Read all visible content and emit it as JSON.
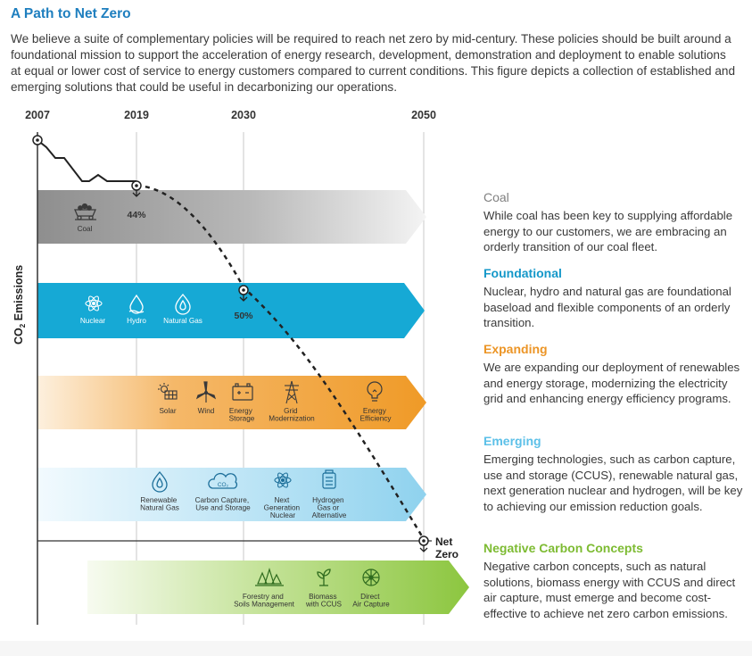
{
  "title": "A Path to Net Zero",
  "intro": "We believe a suite of complementary policies will be required to reach net zero by mid-century. These policies should be built around a foundational mission to support the acceleration of energy research, development, demonstration and deployment to enable solutions at equal or lower cost of service to energy customers compared to current conditions. This figure depicts a collection of established and emerging solutions that could be useful in decarbonizing our operations.",
  "diagram": {
    "years": [
      "2007",
      "2019",
      "2030",
      "2050"
    ],
    "y_axis_label": "CO",
    "y_axis_sub": "2",
    "y_axis_suffix": " Emissions",
    "markers": {
      "m2019": "44%",
      "m2030": "50%"
    },
    "net_zero": [
      "Net",
      "Zero"
    ],
    "colors": {
      "coal": "#9b9b9b",
      "foundational": "#16a9d5",
      "expanding": "#ef9d2c",
      "emerging": "#8fd2ee",
      "negative": "#8cc63f"
    },
    "bands": {
      "coal": {
        "items": [
          {
            "icon": "coal-cart-icon",
            "label": [
              "Coal"
            ]
          }
        ]
      },
      "foundational": {
        "items": [
          {
            "icon": "nuclear-icon",
            "label": [
              "Nuclear"
            ]
          },
          {
            "icon": "hydro-icon",
            "label": [
              "Hydro"
            ]
          },
          {
            "icon": "natural-gas-icon",
            "label": [
              "Natural Gas"
            ]
          }
        ]
      },
      "expanding": {
        "items": [
          {
            "icon": "solar-icon",
            "label": [
              "Solar"
            ]
          },
          {
            "icon": "wind-icon",
            "label": [
              "Wind"
            ]
          },
          {
            "icon": "energy-storage-icon",
            "label": [
              "Energy",
              "Storage"
            ]
          },
          {
            "icon": "grid-tower-icon",
            "label": [
              "Grid",
              "Modernization"
            ]
          },
          {
            "icon": "lightbulb-icon",
            "label": [
              "Energy",
              "Efficiency"
            ]
          }
        ]
      },
      "emerging": {
        "items": [
          {
            "icon": "renewable-gas-icon",
            "label": [
              "Renewable",
              "Natural Gas"
            ]
          },
          {
            "icon": "ccus-cloud-icon",
            "label": [
              "Carbon Capture,",
              "Use and Storage"
            ]
          },
          {
            "icon": "next-gen-nuclear-icon",
            "label": [
              "Next",
              "Generation",
              "Nuclear"
            ]
          },
          {
            "icon": "hydrogen-icon",
            "label": [
              "Hydrogen",
              "Gas or",
              "Alternative"
            ]
          }
        ]
      },
      "negative": {
        "items": [
          {
            "icon": "forestry-icon",
            "label": [
              "Forestry and",
              "Soils Management"
            ]
          },
          {
            "icon": "biomass-icon",
            "label": [
              "Biomass",
              "with CCUS"
            ]
          },
          {
            "icon": "direct-air-capture-icon",
            "label": [
              "Direct",
              "Air Capture"
            ]
          }
        ]
      }
    }
  },
  "legend": [
    {
      "key": "coal",
      "heading": "Coal",
      "color": "#808080",
      "text": "While coal has been key to supplying affordable energy to our customers, we are embracing an orderly transition of our coal fleet."
    },
    {
      "key": "foundational",
      "heading": "Foundational",
      "color": "#1598c9",
      "text": "Nuclear, hydro and natural gas are foundational baseload and flexible components of an orderly transition."
    },
    {
      "key": "expanding",
      "heading": "Expanding",
      "color": "#ec9526",
      "text": "We are expanding our deployment of renewables and energy storage, modernizing the electricity grid and enhancing energy efficiency programs."
    },
    {
      "key": "emerging",
      "heading": "Emerging",
      "color": "#5cc0e8",
      "text": "Emerging technologies, such as carbon capture, use and storage (CCUS), renewable natural gas, next generation nuclear and hydrogen, will be key to achieving our emission reduction goals."
    },
    {
      "key": "negative",
      "heading": "Negative Carbon Concepts",
      "color": "#7dbb32",
      "text": "Negative carbon concepts, such as natural solutions, biomass energy with CCUS and direct air capture, must emerge and become cost-effective to achieve net zero carbon emissions."
    }
  ]
}
